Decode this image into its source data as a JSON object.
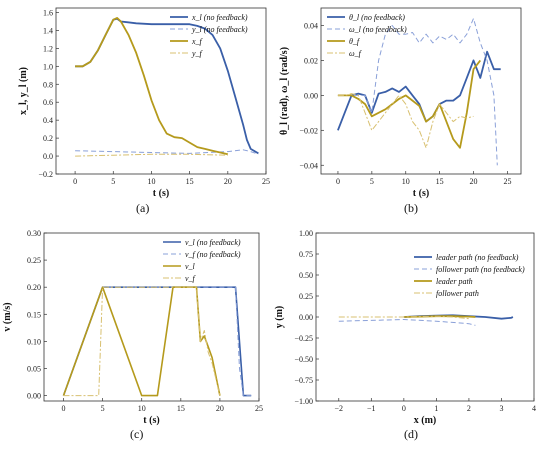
{
  "chart_data": [
    {
      "type": "line",
      "caption": "(a)",
      "xlabel": "t (s)",
      "ylabel": "x_l, y_l (m)",
      "xlim": [
        -2.5,
        25
      ],
      "ylim": [
        -0.2,
        1.65
      ],
      "xticks": [
        0,
        5,
        10,
        15,
        20,
        25
      ],
      "yticks": [
        -0.2,
        0.0,
        0.2,
        0.4,
        0.6,
        0.8,
        1.0,
        1.2,
        1.4,
        1.6
      ],
      "yfmt": 1,
      "legend_position": "top-right",
      "series": [
        {
          "name": "x_l (no feedback)",
          "color": "#3a5fa8",
          "dash": "",
          "width": 1.8,
          "x": [
            0,
            1,
            2,
            3,
            4,
            5,
            5.5,
            6,
            8,
            10,
            12,
            14,
            15,
            16,
            17,
            18,
            19,
            20,
            21,
            22,
            22.5,
            23,
            24
          ],
          "y": [
            1.0,
            1.0,
            1.05,
            1.18,
            1.35,
            1.52,
            1.53,
            1.5,
            1.48,
            1.47,
            1.47,
            1.47,
            1.47,
            1.45,
            1.42,
            1.35,
            1.2,
            0.95,
            0.65,
            0.35,
            0.18,
            0.08,
            0.03
          ]
        },
        {
          "name": "y_l (no feedback)",
          "color": "#8aa0d8",
          "dash": "5,3",
          "width": 1.0,
          "x": [
            0,
            5,
            10,
            15,
            20,
            22,
            23,
            24
          ],
          "y": [
            0.06,
            0.05,
            0.04,
            0.03,
            0.05,
            0.07,
            0.05,
            0.02
          ]
        },
        {
          "name": "x_f",
          "color": "#b59a1c",
          "dash": "",
          "width": 1.8,
          "x": [
            0,
            1,
            2,
            3,
            4,
            5,
            5.5,
            6,
            7,
            8,
            9,
            10,
            11,
            12,
            13,
            14,
            15,
            16,
            17,
            18,
            19,
            20
          ],
          "y": [
            1.0,
            1.0,
            1.05,
            1.18,
            1.35,
            1.52,
            1.54,
            1.5,
            1.35,
            1.15,
            0.9,
            0.62,
            0.4,
            0.25,
            0.21,
            0.2,
            0.15,
            0.1,
            0.08,
            0.06,
            0.04,
            0.02
          ]
        },
        {
          "name": "y_f",
          "color": "#d8c070",
          "dash": "6,2,2,2",
          "width": 1.0,
          "x": [
            0,
            5,
            10,
            15,
            20
          ],
          "y": [
            0.0,
            0.01,
            0.02,
            0.02,
            0.01
          ]
        }
      ]
    },
    {
      "type": "line",
      "caption": "(b)",
      "xlabel": "t (s)",
      "ylabel": "θ_l (rad), ω_l (rad/s)",
      "xlim": [
        -2.5,
        27
      ],
      "ylim": [
        -0.045,
        0.05
      ],
      "xticks": [
        0,
        5,
        10,
        15,
        20,
        25
      ],
      "yticks": [
        -0.04,
        -0.02,
        0.0,
        0.02,
        0.04
      ],
      "yfmt": 2,
      "legend_position": "top-left",
      "series": [
        {
          "name": "θ_l (no feedback)",
          "color": "#3a5fa8",
          "dash": "",
          "width": 1.8,
          "x": [
            0,
            1,
            2,
            3,
            4,
            5,
            6,
            7,
            8,
            9,
            10,
            11,
            12,
            13,
            14,
            15,
            16,
            17,
            18,
            19,
            20,
            21,
            22,
            23,
            24
          ],
          "y": [
            -0.02,
            -0.01,
            0.0,
            0.001,
            0.0,
            -0.01,
            0.001,
            0.002,
            0.004,
            0.002,
            0.005,
            0.0,
            -0.005,
            -0.015,
            -0.012,
            -0.005,
            -0.003,
            -0.003,
            0.0,
            0.01,
            0.02,
            0.01,
            0.025,
            0.015,
            0.015
          ]
        },
        {
          "name": "ω_l (no feedback)",
          "color": "#8aa0d8",
          "dash": "5,3",
          "width": 1.0,
          "x": [
            0,
            2,
            4,
            5,
            6,
            7,
            8,
            9,
            10,
            11,
            12,
            13,
            14,
            15,
            16,
            17,
            18,
            19,
            20,
            21,
            22,
            23,
            23.5
          ],
          "y": [
            0.0,
            0.0,
            0.0,
            -0.01,
            0.02,
            0.035,
            0.04,
            0.035,
            0.035,
            0.036,
            0.03,
            0.035,
            0.03,
            0.034,
            0.032,
            0.035,
            0.03,
            0.035,
            0.044,
            0.03,
            0.02,
            0.0,
            -0.04
          ]
        },
        {
          "name": "θ_f",
          "color": "#b59a1c",
          "dash": "",
          "width": 1.8,
          "x": [
            0,
            1,
            2,
            3,
            4,
            5,
            6,
            7,
            8,
            9,
            10,
            11,
            12,
            13,
            14,
            15,
            16,
            17,
            18,
            19,
            20,
            21
          ],
          "y": [
            0.0,
            0.0,
            0.0,
            -0.002,
            -0.005,
            -0.012,
            -0.01,
            -0.008,
            -0.005,
            -0.002,
            0.0,
            -0.003,
            -0.006,
            -0.015,
            -0.012,
            -0.005,
            -0.015,
            -0.025,
            -0.03,
            -0.01,
            0.015,
            0.02
          ]
        },
        {
          "name": "ω_f",
          "color": "#d8c070",
          "dash": "6,2,2,2",
          "width": 1.0,
          "x": [
            0,
            1,
            2,
            3,
            4,
            5,
            6,
            7,
            8,
            9,
            10,
            11,
            12,
            13,
            14,
            15,
            16,
            17,
            18,
            19,
            20
          ],
          "y": [
            0.0,
            0.0,
            0.001,
            0.0,
            -0.01,
            -0.02,
            -0.015,
            -0.01,
            -0.005,
            0.0,
            -0.005,
            -0.015,
            -0.02,
            -0.03,
            -0.015,
            -0.005,
            -0.01,
            -0.015,
            -0.012,
            -0.013,
            -0.012
          ]
        }
      ]
    },
    {
      "type": "line",
      "caption": "(c)",
      "xlabel": "t (s)",
      "ylabel": "v (m/s)",
      "xlim": [
        -2.5,
        25
      ],
      "ylim": [
        -0.01,
        0.3
      ],
      "xticks": [
        0,
        5,
        10,
        15,
        20,
        25
      ],
      "yticks": [
        0.0,
        0.05,
        0.1,
        0.15,
        0.2,
        0.25,
        0.3
      ],
      "yfmt": 2,
      "legend_position": "top-right",
      "series": [
        {
          "name": "v_l (no feedback)",
          "color": "#3a5fa8",
          "dash": "",
          "width": 1.6,
          "x": [
            0,
            5,
            10,
            12,
            14,
            16,
            18,
            20,
            21,
            22,
            23,
            24
          ],
          "y": [
            0.0,
            0.2,
            0.2,
            0.2,
            0.2,
            0.2,
            0.2,
            0.2,
            0.2,
            0.2,
            0.0,
            0.0
          ]
        },
        {
          "name": "v_f (no feedback)",
          "color": "#8aa0d8",
          "dash": "5,3",
          "width": 1.0,
          "x": [
            0,
            5,
            10,
            15,
            20,
            22,
            22.5,
            23,
            24
          ],
          "y": [
            0.0,
            0.2,
            0.2,
            0.2,
            0.2,
            0.2,
            0.05,
            0.0,
            0.0
          ]
        },
        {
          "name": "v_l",
          "color": "#b59a1c",
          "dash": "",
          "width": 1.6,
          "x": [
            0,
            5,
            10,
            12,
            14,
            17,
            17.5,
            18,
            18.5,
            19,
            20
          ],
          "y": [
            0.0,
            0.2,
            0.0,
            0.0,
            0.2,
            0.2,
            0.1,
            0.11,
            0.09,
            0.07,
            0.0
          ]
        },
        {
          "name": "v_f",
          "color": "#d8c070",
          "dash": "6,2,2,2",
          "width": 1.0,
          "x": [
            0,
            4.5,
            5,
            10,
            15,
            17,
            17.5,
            18,
            18.5,
            19,
            20
          ],
          "y": [
            0.0,
            0.0,
            0.2,
            0.2,
            0.2,
            0.2,
            0.1,
            0.12,
            0.08,
            0.06,
            0.0
          ]
        }
      ]
    },
    {
      "type": "line",
      "caption": "(d)",
      "xlabel": "x (m)",
      "ylabel": "y (m)",
      "xlim": [
        -2.7,
        4
      ],
      "ylim": [
        -1.0,
        1.0
      ],
      "xticks": [
        -2,
        -1,
        0,
        1,
        2,
        3,
        4
      ],
      "yticks": [
        -1.0,
        -0.75,
        -0.5,
        -0.25,
        0.0,
        0.25,
        0.5,
        0.75,
        1.0
      ],
      "yfmt": 2,
      "legend_position": "top-right",
      "series": [
        {
          "name": "leader path (no feedback)",
          "color": "#3a5fa8",
          "dash": "",
          "width": 1.8,
          "x": [
            0,
            0.5,
            1.0,
            1.5,
            2.0,
            2.5,
            3.0,
            3.3,
            3.35
          ],
          "y": [
            0.0,
            0.01,
            0.015,
            0.02,
            0.01,
            0.0,
            -0.02,
            -0.01,
            0.0
          ]
        },
        {
          "name": "follower path (no feedback)",
          "color": "#8aa0d8",
          "dash": "5,3",
          "width": 1.0,
          "x": [
            -2.0,
            -1.0,
            0.0,
            1.0,
            2.0,
            2.2
          ],
          "y": [
            -0.05,
            -0.04,
            -0.03,
            -0.05,
            -0.08,
            -0.1
          ]
        },
        {
          "name": "leader path",
          "color": "#b59a1c",
          "dash": "",
          "width": 1.8,
          "x": [
            0,
            0.5,
            1.0,
            1.5,
            2.0,
            2.2
          ],
          "y": [
            0.0,
            0.005,
            0.01,
            0.01,
            0.005,
            0.0
          ]
        },
        {
          "name": "follower path",
          "color": "#d8c070",
          "dash": "6,2,2,2",
          "width": 1.0,
          "x": [
            -2.0,
            -1.0,
            0.0,
            0.5,
            1.0,
            1.5,
            2.0
          ],
          "y": [
            0.0,
            0.0,
            0.0,
            0.005,
            0.01,
            0.0,
            -0.02
          ]
        }
      ]
    }
  ]
}
